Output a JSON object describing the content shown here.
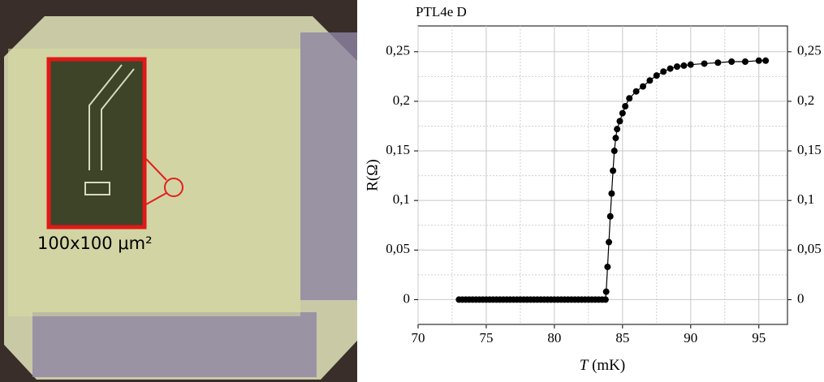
{
  "photo": {
    "scale_label": "100x100 μm²"
  },
  "chart_data": {
    "type": "line",
    "title": "PTL4e D",
    "x_label_var": "T",
    "x_label_unit": "(mK)",
    "y_label": "R(Ω)",
    "color": "#000000",
    "markers": true,
    "grid": true,
    "minor_grid": true,
    "right_axis_labels": true,
    "xlim": [
      70,
      97.1
    ],
    "xticks": [
      70,
      75,
      80,
      85,
      90,
      95
    ],
    "ylim": [
      -0.025,
      0.276
    ],
    "yticks": [
      0,
      {
        "value": 0.05,
        "label": "0,05"
      },
      {
        "value": 0.1,
        "label": "0,1"
      },
      {
        "value": 0.15,
        "label": "0,15"
      },
      {
        "value": 0.2,
        "label": "0,2"
      },
      {
        "value": 0.25,
        "label": "0,25"
      }
    ],
    "x": [
      73,
      73.25,
      73.5,
      73.75,
      74,
      74.25,
      74.5,
      74.75,
      75,
      75.25,
      75.5,
      75.75,
      76,
      76.25,
      76.5,
      76.75,
      77,
      77.25,
      77.5,
      77.75,
      78,
      78.25,
      78.5,
      78.75,
      79,
      79.25,
      79.5,
      79.75,
      80,
      80.25,
      80.5,
      80.75,
      81,
      81.25,
      81.5,
      81.75,
      82,
      82.25,
      82.5,
      82.75,
      83,
      83.25,
      83.5,
      83.75,
      83.8,
      83.9,
      84.0,
      84.1,
      84.2,
      84.3,
      84.4,
      84.5,
      84.6,
      84.8,
      85.0,
      85.2,
      85.5,
      86,
      86.5,
      87,
      87.5,
      88,
      88.5,
      89,
      89.5,
      90,
      91,
      92,
      93,
      94,
      95,
      95.5
    ],
    "values": [
      0,
      0,
      0,
      0,
      0,
      0,
      0,
      0,
      0,
      0,
      0,
      0,
      0,
      0,
      0,
      0,
      0,
      0,
      0,
      0,
      0,
      0,
      0,
      0,
      0,
      0,
      0,
      0,
      0,
      0,
      0,
      0,
      0,
      0,
      0,
      0,
      0,
      0,
      0,
      0,
      0,
      0,
      0,
      0,
      0.008,
      0.033,
      0.058,
      0.084,
      0.107,
      0.13,
      0.15,
      0.163,
      0.172,
      0.18,
      0.188,
      0.195,
      0.203,
      0.21,
      0.215,
      0.221,
      0.226,
      0.23,
      0.233,
      0.235,
      0.236,
      0.237,
      0.238,
      0.239,
      0.24,
      0.24,
      0.241,
      0.241
    ]
  }
}
